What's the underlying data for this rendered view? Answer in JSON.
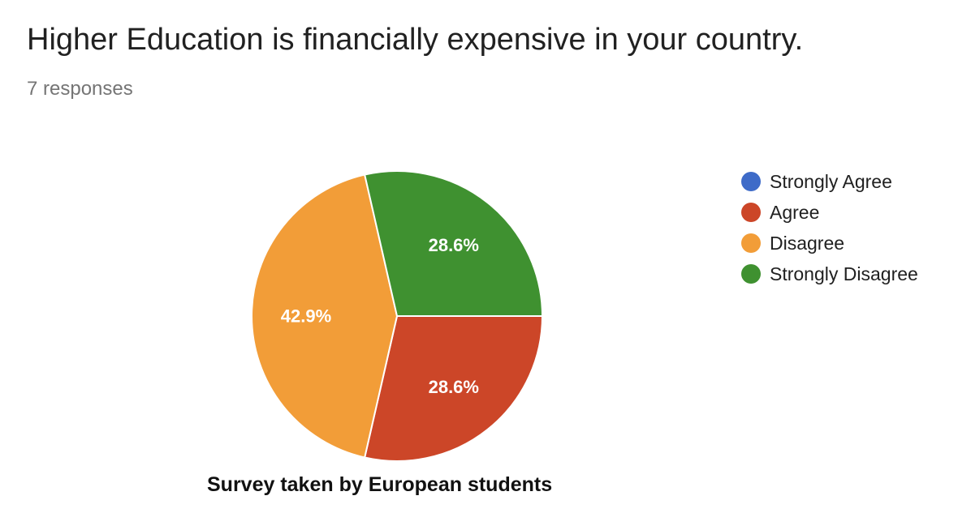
{
  "header": {
    "title": "Higher Education is financially expensive in your country.",
    "responses": "7 responses"
  },
  "caption": "Survey taken by European students",
  "colors": {
    "strongly_agree": "#3e6bc8",
    "agree": "#cc4628",
    "disagree": "#f29d38",
    "strongly_disagree": "#3f9130"
  },
  "chart_data": {
    "type": "pie",
    "title": "Higher Education is financially expensive in your country.",
    "legend_position": "right",
    "slices": [
      {
        "label": "Strongly Agree",
        "value": 0,
        "percent_label": "",
        "color": "#3e6bc8"
      },
      {
        "label": "Agree",
        "value": 28.6,
        "percent_label": "28.6%",
        "color": "#cc4628"
      },
      {
        "label": "Disagree",
        "value": 42.9,
        "percent_label": "42.9%",
        "color": "#f29d38"
      },
      {
        "label": "Strongly Disagree",
        "value": 28.6,
        "percent_label": "28.6%",
        "color": "#3f9130"
      }
    ]
  }
}
